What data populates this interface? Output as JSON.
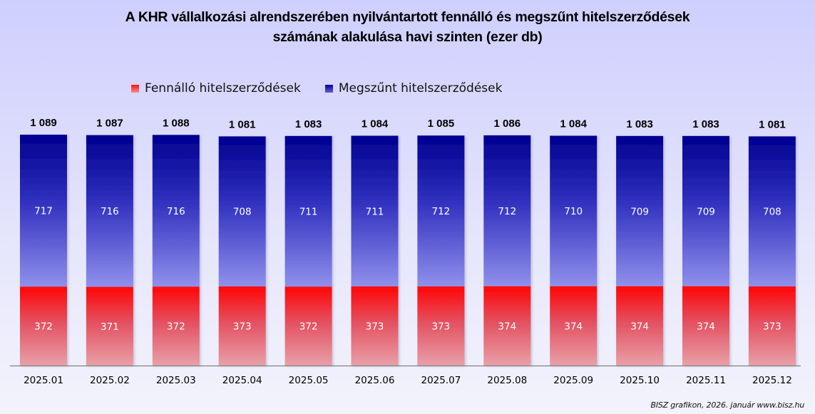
{
  "chart_data": {
    "type": "bar",
    "stacked": true,
    "title_lines": [
      "A KHR vállalkozási alrendszerében nyilvántartott fennálló és megszűnt hitelszerződések",
      "számának alakulása havi szinten (ezer db)"
    ],
    "xlabel": "",
    "ylabel": "",
    "ylim": [
      0,
      1100
    ],
    "grid": false,
    "legend_position": "top-left",
    "categories": [
      "2025.01",
      "2025.02",
      "2025.03",
      "2025.04",
      "2025.05",
      "2025.06",
      "2025.07",
      "2025.08",
      "2025.09",
      "2025.10",
      "2025.11",
      "2025.12"
    ],
    "series": [
      {
        "name": "Fennálló hitelszerződések",
        "color": "#ff0000",
        "values": [
          372,
          371,
          372,
          373,
          372,
          373,
          373,
          374,
          374,
          374,
          374,
          373
        ]
      },
      {
        "name": "Megszűnt hitelszerződések",
        "color": "#000099",
        "values": [
          717,
          716,
          716,
          708,
          711,
          711,
          712,
          712,
          710,
          709,
          709,
          708
        ]
      }
    ],
    "totals": [
      "1 089",
      "1 087",
      "1 088",
      "1 081",
      "1 083",
      "1 084",
      "1 085",
      "1 086",
      "1 084",
      "1 083",
      "1 083",
      "1 081"
    ],
    "source_note": "BISZ grafikon, 2026.  január www.bisz.hu"
  }
}
